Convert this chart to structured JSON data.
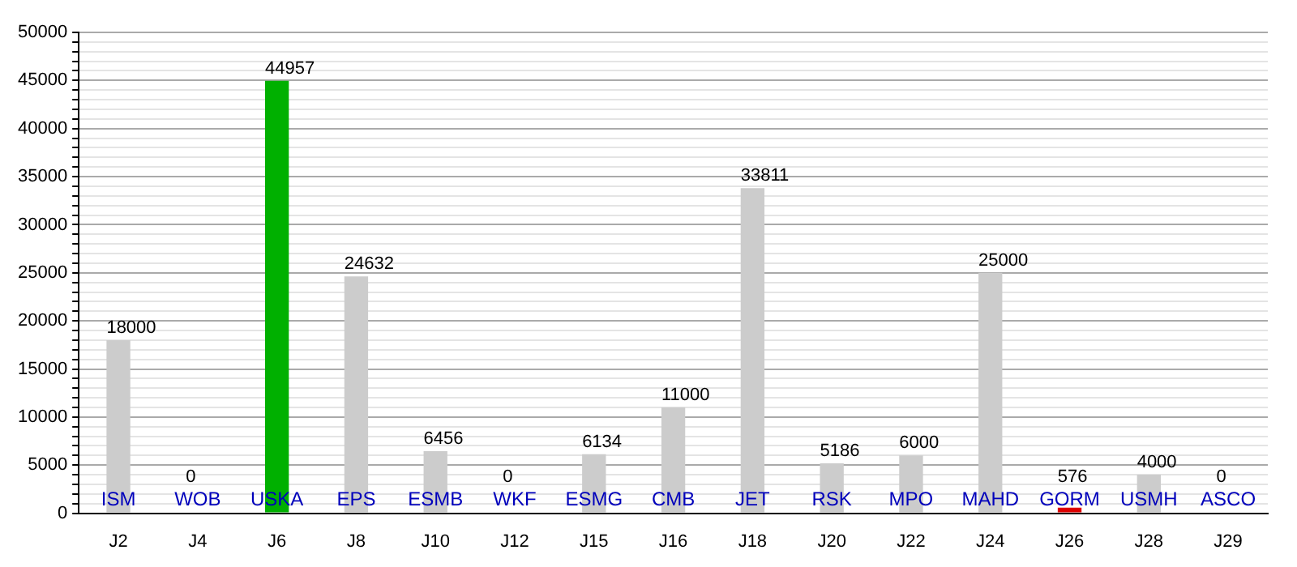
{
  "chart_data": {
    "type": "bar",
    "categories": [
      "J2",
      "J4",
      "J6",
      "J8",
      "J10",
      "J12",
      "J15",
      "J16",
      "J18",
      "J20",
      "J22",
      "J24",
      "J26",
      "J28",
      "J29"
    ],
    "values": [
      18000,
      0,
      44957,
      24632,
      6456,
      0,
      6134,
      11000,
      33811,
      5186,
      6000,
      25000,
      576,
      4000,
      0
    ],
    "colors": [
      "#cccccc",
      "#cccccc",
      "#00b000",
      "#cccccc",
      "#cccccc",
      "#cccccc",
      "#cccccc",
      "#cccccc",
      "#cccccc",
      "#cccccc",
      "#cccccc",
      "#cccccc",
      "#dd0000",
      "#cccccc",
      "#cccccc"
    ],
    "data_labels": true,
    "ylim": [
      0,
      50000
    ],
    "yticks": [
      0,
      {
        "value": 1000,
        "label": null
      },
      {
        "value": 2000,
        "label": null
      },
      {
        "value": 3000,
        "label": null
      },
      {
        "value": 4000,
        "label": null
      },
      5000,
      {
        "value": 6000,
        "label": null
      },
      {
        "value": 7000,
        "label": null
      },
      {
        "value": 8000,
        "label": null
      },
      {
        "value": 9000,
        "label": null
      },
      10000,
      {
        "value": 11000,
        "label": null
      },
      {
        "value": 12000,
        "label": null
      },
      {
        "value": 13000,
        "label": null
      },
      {
        "value": 14000,
        "label": null
      },
      15000,
      {
        "value": 16000,
        "label": null
      },
      {
        "value": 17000,
        "label": null
      },
      {
        "value": 18000,
        "label": null
      },
      {
        "value": 19000,
        "label": null
      },
      20000,
      {
        "value": 21000,
        "label": null
      },
      {
        "value": 22000,
        "label": null
      },
      {
        "value": 23000,
        "label": null
      },
      {
        "value": 24000,
        "label": null
      },
      25000,
      {
        "value": 26000,
        "label": null
      },
      {
        "value": 27000,
        "label": null
      },
      {
        "value": 28000,
        "label": null
      },
      {
        "value": 29000,
        "label": null
      },
      30000,
      {
        "value": 31000,
        "label": null
      },
      {
        "value": 32000,
        "label": null
      },
      {
        "value": 33000,
        "label": null
      },
      {
        "value": 34000,
        "label": null
      },
      35000,
      {
        "value": 36000,
        "label": null
      },
      {
        "value": 37000,
        "label": null
      },
      {
        "value": 38000,
        "label": null
      },
      {
        "value": 39000,
        "label": null
      },
      40000,
      {
        "value": 41000,
        "label": null
      },
      {
        "value": 42000,
        "label": null
      },
      {
        "value": 43000,
        "label": null
      },
      {
        "value": 44000,
        "label": null
      },
      45000,
      {
        "value": 46000,
        "label": null
      },
      {
        "value": 47000,
        "label": null
      },
      {
        "value": 48000,
        "label": null
      },
      {
        "value": 49000,
        "label": null
      },
      50000
    ],
    "grid": "y",
    "annotations": [
      {
        "text": "ISM",
        "x": "J2",
        "y": 0
      },
      {
        "text": "WOB",
        "x": "J4",
        "y": 0
      },
      {
        "text": "USKA",
        "x": "J6",
        "y": 0
      },
      {
        "text": "EPS",
        "x": "J8",
        "y": 0
      },
      {
        "text": "ESMB",
        "x": "J10",
        "y": 0
      },
      {
        "text": "WKF",
        "x": "J12",
        "y": 0
      },
      {
        "text": "ESMG",
        "x": "J15",
        "y": 0
      },
      {
        "text": "CMB",
        "x": "J16",
        "y": 0
      },
      {
        "text": "JET",
        "x": "J18",
        "y": 0
      },
      {
        "text": "RSK",
        "x": "J20",
        "y": 0
      },
      {
        "text": "MPO",
        "x": "J22",
        "y": 0
      },
      {
        "text": "MAHD",
        "x": "J24",
        "y": 0
      },
      {
        "text": "GORM",
        "x": "J26",
        "y": 0
      },
      {
        "text": "USMH",
        "x": "J28",
        "y": 0
      },
      {
        "text": "ASCO",
        "x": "J29",
        "y": 0
      }
    ]
  }
}
